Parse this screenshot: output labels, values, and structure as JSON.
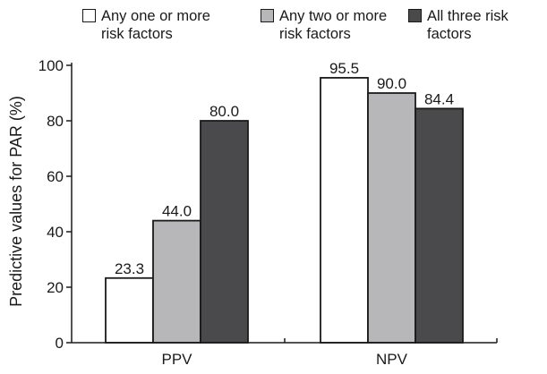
{
  "colors": {
    "axis": "#1a1a1a",
    "series": [
      "#ffffff",
      "#b7b7ba",
      "#4a4a4c"
    ]
  },
  "legend": {
    "items": [
      {
        "label": "Any one or more risk factors",
        "color": "#ffffff"
      },
      {
        "label": "Any two or more risk factors",
        "color": "#b7b7ba"
      },
      {
        "label": "All three risk factors",
        "color": "#4a4a4c"
      }
    ]
  },
  "chart_data": {
    "type": "bar",
    "categories": [
      "PPV",
      "NPV"
    ],
    "series": [
      {
        "name": "Any one or more risk factors",
        "values": [
          23.3,
          95.5
        ],
        "labels": [
          "23.3",
          "95.5"
        ]
      },
      {
        "name": "Any two or more risk factors",
        "values": [
          44.0,
          90.0
        ],
        "labels": [
          "44.0",
          "90.0"
        ]
      },
      {
        "name": "All three risk factors",
        "values": [
          80.0,
          84.4
        ],
        "labels": [
          "80.0",
          "84.4"
        ]
      }
    ],
    "ylabel": "Predictive values for PAR (%)",
    "xlabel": "",
    "ylim": [
      0,
      100
    ],
    "yticks": [
      0,
      20,
      40,
      60,
      80,
      100
    ],
    "legend_position": "top",
    "grid": false
  }
}
